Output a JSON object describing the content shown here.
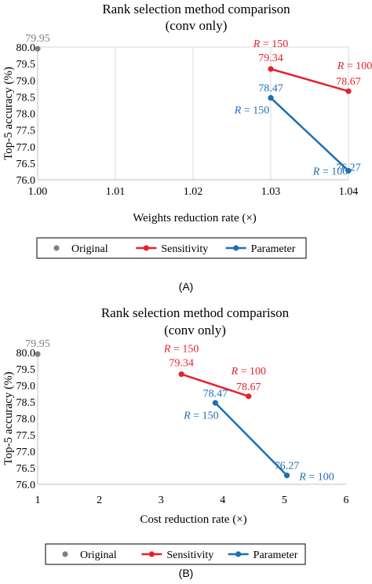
{
  "chart_data": [
    {
      "type": "scatter",
      "title": "Rank selection method comparison (conv only)",
      "title_lines": [
        "Rank selection method comparison",
        "(conv only)"
      ],
      "xlabel": "Weights reduction rate (×)",
      "ylabel": "Top-5 accuracy (%)",
      "xlim": [
        1.0,
        1.04
      ],
      "ylim": [
        76.0,
        80.0
      ],
      "xticks": [
        "1.00",
        "1.01",
        "1.02",
        "1.03",
        "1.04"
      ],
      "yticks": [
        "76.0",
        "76.5",
        "77.0",
        "77.5",
        "78.0",
        "78.5",
        "79.0",
        "79.5",
        "80.0"
      ],
      "grid": true,
      "legend_position": "bottom",
      "panel_label": "(A)",
      "series": [
        {
          "name": "Original",
          "color": "#808080",
          "points": [
            {
              "x": 1.0,
              "y": 79.95,
              "label": "79.95",
              "r": ""
            }
          ]
        },
        {
          "name": "Sensitivity",
          "color": "#e8202a",
          "points": [
            {
              "x": 1.03,
              "y": 79.34,
              "label": "79.34",
              "r": "R = 150"
            },
            {
              "x": 1.04,
              "y": 78.67,
              "label": "78.67",
              "r": "R = 100"
            }
          ]
        },
        {
          "name": "Parameter",
          "color": "#1c6fb5",
          "points": [
            {
              "x": 1.03,
              "y": 78.47,
              "label": "78.47",
              "r": "R = 150"
            },
            {
              "x": 1.04,
              "y": 76.27,
              "label": "76.27",
              "r": "R = 100"
            }
          ]
        }
      ]
    },
    {
      "type": "scatter",
      "title": "Rank selection method comparison (conv only)",
      "title_lines": [
        "Rank selection method comparison",
        "(conv only)"
      ],
      "xlabel": "Cost reduction rate (×)",
      "ylabel": "Top-5 accuracy (%)",
      "xlim": [
        1,
        6
      ],
      "ylim": [
        76.0,
        80.0
      ],
      "xticks": [
        "1",
        "2",
        "3",
        "4",
        "5",
        "6"
      ],
      "yticks": [
        "76.0",
        "76.5",
        "77.0",
        "77.5",
        "78.0",
        "78.5",
        "79.0",
        "79.5",
        "80.0"
      ],
      "grid": false,
      "legend_position": "bottom",
      "panel_label": "(B)",
      "series": [
        {
          "name": "Original",
          "color": "#808080",
          "points": [
            {
              "x": 1.0,
              "y": 79.95,
              "label": "79.95",
              "r": ""
            }
          ]
        },
        {
          "name": "Sensitivity",
          "color": "#e8202a",
          "points": [
            {
              "x": 3.33,
              "y": 79.34,
              "label": "79.34",
              "r": "R = 150"
            },
            {
              "x": 4.42,
              "y": 78.67,
              "label": "78.67",
              "r": "R = 100"
            }
          ]
        },
        {
          "name": "Parameter",
          "color": "#1c6fb5",
          "points": [
            {
              "x": 3.88,
              "y": 78.47,
              "label": "78.47",
              "r": "R = 150"
            },
            {
              "x": 5.04,
              "y": 76.27,
              "label": "76.27",
              "r": "R = 100"
            }
          ]
        }
      ]
    }
  ]
}
